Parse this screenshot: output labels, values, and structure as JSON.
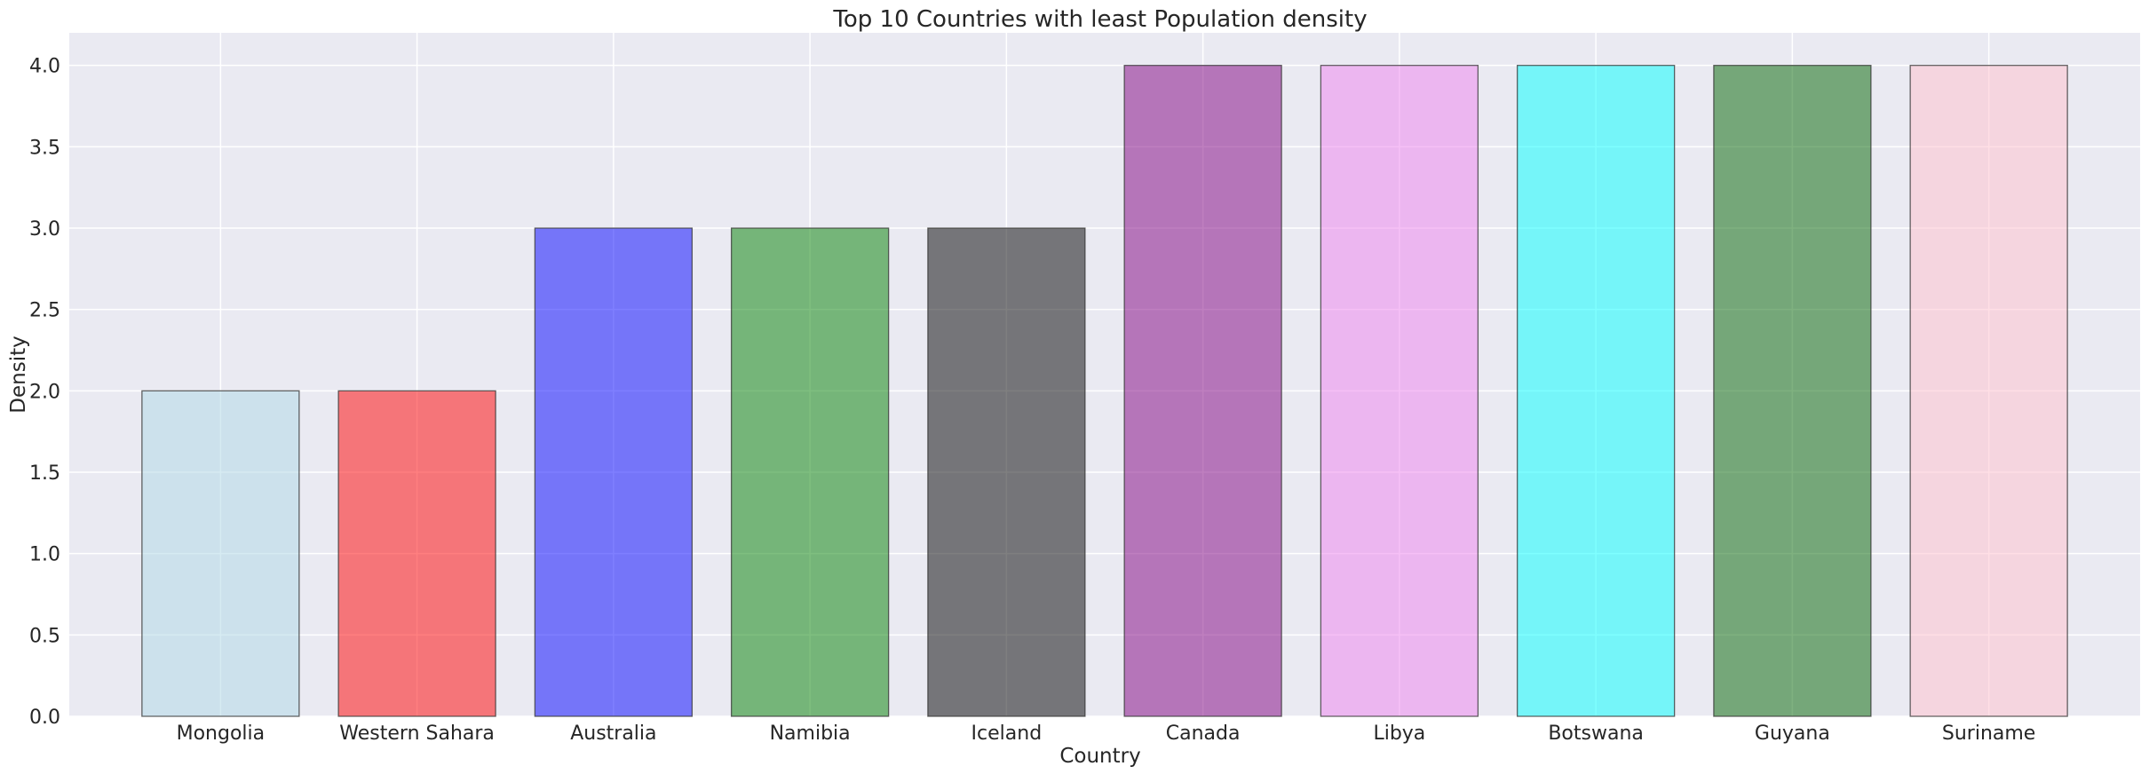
{
  "chart_data": {
    "type": "bar",
    "title": "Top 10 Countries with least Population density",
    "xlabel": "Country",
    "ylabel": "Density",
    "categories": [
      "Mongolia",
      "Western Sahara",
      "Australia",
      "Namibia",
      "Iceland",
      "Canada",
      "Libya",
      "Botswana",
      "Guyana",
      "Suriname"
    ],
    "values": [
      2,
      2,
      3,
      3,
      3,
      4,
      4,
      4,
      4,
      4
    ],
    "colors": [
      "#add8e6",
      "#ff0000",
      "#0000ff",
      "#008000",
      "#000000",
      "#800080",
      "#ee82ee",
      "#00ffff",
      "#006400",
      "#ffc0cb"
    ],
    "bar_alpha": 0.5,
    "ylim": [
      0,
      4.2
    ],
    "yticks": [
      "0.0",
      "0.5",
      "1.0",
      "1.5",
      "2.0",
      "2.5",
      "3.0",
      "3.5",
      "4.0"
    ],
    "grid": true,
    "background": "#eaeaf2",
    "legend": "none"
  }
}
